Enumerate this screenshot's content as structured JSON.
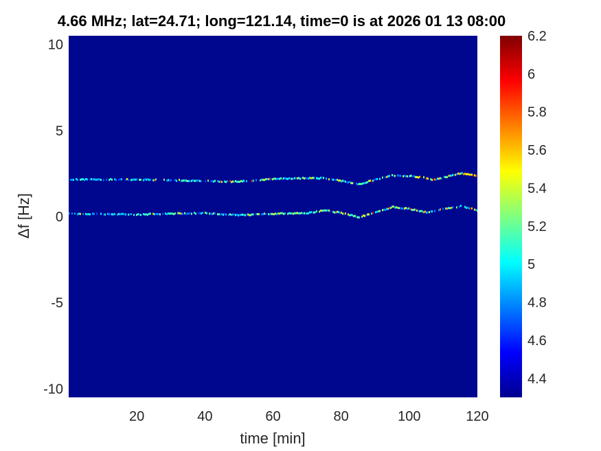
{
  "chart_data": {
    "type": "heatmap",
    "title": "4.66 MHz;  lat=24.71; long=121.14, time=0 is at 2026 01 13 08:00",
    "xlabel": "time [min]",
    "ylabel": "Δf [Hz]",
    "xlim": [
      0,
      120
    ],
    "ylim": [
      -10.5,
      10.5
    ],
    "xticks": [
      20,
      40,
      60,
      80,
      100,
      120
    ],
    "yticks": [
      -10,
      -5,
      0,
      5,
      10
    ],
    "colorbar": {
      "clim": [
        4.3,
        6.2
      ],
      "ticks": [
        4.4,
        4.6,
        4.8,
        5,
        5.2,
        5.4,
        5.6,
        5.8,
        6,
        6.2
      ],
      "colormap": "jet"
    },
    "background_color": "#00078f",
    "traces": [
      {
        "time": [
          0,
          20,
          40,
          45,
          50,
          60,
          70,
          75,
          80,
          85,
          90,
          95,
          100,
          105,
          107,
          110,
          115,
          120
        ],
        "df": [
          2.15,
          2.15,
          2.07,
          2.03,
          2.03,
          2.19,
          2.23,
          2.23,
          2.07,
          1.87,
          2.15,
          2.39,
          2.35,
          2.23,
          2.11,
          2.27,
          2.51,
          2.35
        ]
      },
      {
        "time": [
          0,
          20,
          40,
          50,
          60,
          70,
          75,
          80,
          85,
          90,
          95,
          100,
          105,
          110,
          115,
          120
        ],
        "df": [
          0.16,
          0.12,
          0.2,
          0.08,
          0.16,
          0.2,
          0.36,
          0.2,
          -0.04,
          0.24,
          0.56,
          0.44,
          0.24,
          0.44,
          0.6,
          0.36
        ]
      }
    ]
  }
}
